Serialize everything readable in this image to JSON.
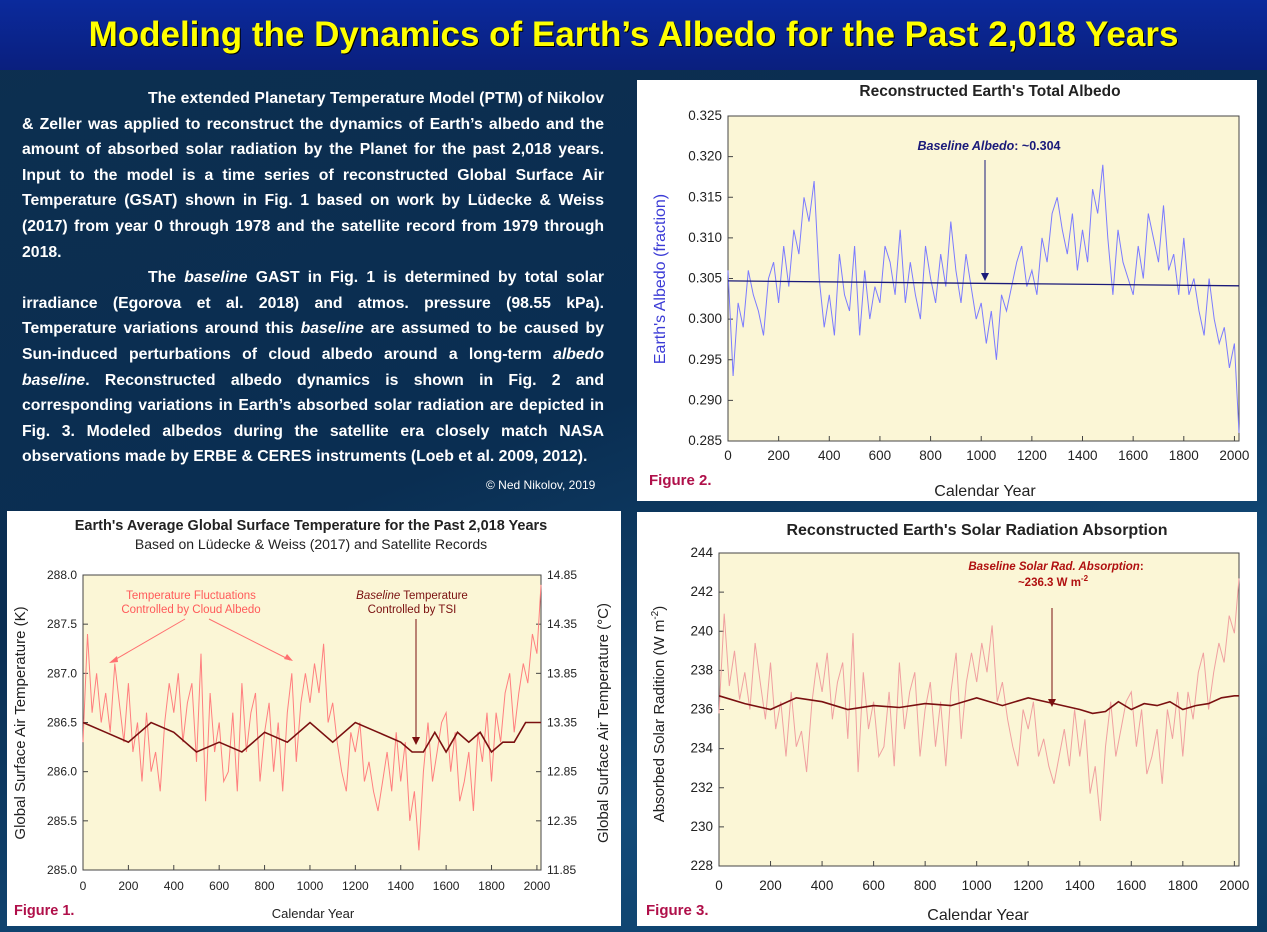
{
  "header": {
    "title": "Modeling the Dynamics of Earth’s Albedo for the Past 2,018 Years"
  },
  "intro": {
    "p1": "The extended Planetary Temperature Model (PTM) of Nikolov & Zeller was applied to reconstruct the dynamics of Earth’s albedo and the amount of absorbed solar radiation by the Planet for the past 2,018 years.  Input to the model is a time series of reconstructed Global Surface Air Temperature (GSAT) shown in Fig. 1 based on work by Lüdecke & Weiss (2017) from year 0 through 1978 and the satellite record from 1979 through 2018.",
    "p2_a": "The ",
    "p2_b": "baseline",
    "p2_c": " GAST in Fig. 1 is determined by total solar irradiance (Egorova et al. 2018) and atmos. pressure (98.55 kPa). Temperature variations around this ",
    "p2_d": "baseline",
    "p2_e": " are assumed to be caused by Sun-induced perturbations of cloud albedo around a long-term ",
    "p2_f": "albedo baseline",
    "p2_g": ". Reconstructed albedo dynamics is shown in Fig. 2 and corresponding variations in Earth’s absorbed solar radiation are depicted in Fig. 3. Modeled albedos during the satellite era closely match NASA observations made by ERBE & CERES instruments (Loeb et al. 2009, 2012).",
    "credit": "© Ned Nikolov, 2019"
  },
  "colors": {
    "title_bg": "#0a1f7e",
    "title_text": "#ffff00",
    "plot_bg": "#fbf6d6",
    "albedo_series": "#7b7bff",
    "albedo_baseline": "#1a1a7a",
    "temp_series": "#ff7f7f",
    "temp_baseline": "#7a1010",
    "absorb_series": "#f0a0a0",
    "absorb_baseline": "#7a1010",
    "figure_label": "#b0104a"
  },
  "chart_data": [
    {
      "id": "fig2",
      "type": "line",
      "title": "Reconstructed Earth's Total Albedo",
      "xlabel": "Calendar Year",
      "ylabel": "Earth's Albedo (fraction)",
      "xlim": [
        0,
        2018
      ],
      "ylim": [
        0.285,
        0.325
      ],
      "xticks": [
        0,
        200,
        400,
        600,
        800,
        1000,
        1200,
        1400,
        1600,
        1800,
        2000
      ],
      "yticks": [
        "0.285",
        "0.290",
        "0.295",
        "0.300",
        "0.305",
        "0.310",
        "0.315",
        "0.320",
        "0.325"
      ],
      "figure_label": "Figure 2.",
      "annotation_prefix": "Baseline Albedo",
      "annotation_value": ": ~0.304",
      "baseline": {
        "x": [
          0,
          2018
        ],
        "y": [
          0.3047,
          0.3041
        ]
      },
      "series": [
        {
          "name": "Reconstructed albedo",
          "x": [
            0,
            20,
            40,
            60,
            80,
            100,
            120,
            140,
            160,
            180,
            200,
            220,
            240,
            260,
            280,
            300,
            320,
            340,
            360,
            380,
            400,
            420,
            440,
            460,
            480,
            500,
            520,
            540,
            560,
            580,
            600,
            620,
            640,
            660,
            680,
            700,
            720,
            740,
            760,
            780,
            800,
            820,
            840,
            860,
            880,
            900,
            920,
            940,
            960,
            980,
            1000,
            1020,
            1040,
            1060,
            1080,
            1100,
            1120,
            1140,
            1160,
            1180,
            1200,
            1220,
            1240,
            1260,
            1280,
            1300,
            1320,
            1340,
            1360,
            1380,
            1400,
            1420,
            1440,
            1460,
            1480,
            1500,
            1520,
            1540,
            1560,
            1580,
            1600,
            1620,
            1640,
            1660,
            1680,
            1700,
            1720,
            1740,
            1760,
            1780,
            1800,
            1820,
            1840,
            1860,
            1880,
            1900,
            1920,
            1940,
            1960,
            1980,
            2000,
            2018
          ],
          "y": [
            0.306,
            0.293,
            0.302,
            0.299,
            0.306,
            0.303,
            0.301,
            0.298,
            0.305,
            0.307,
            0.302,
            0.309,
            0.304,
            0.311,
            0.308,
            0.315,
            0.312,
            0.317,
            0.305,
            0.299,
            0.303,
            0.298,
            0.308,
            0.303,
            0.301,
            0.309,
            0.298,
            0.306,
            0.3,
            0.304,
            0.302,
            0.309,
            0.307,
            0.303,
            0.311,
            0.302,
            0.307,
            0.303,
            0.3,
            0.309,
            0.305,
            0.302,
            0.308,
            0.304,
            0.312,
            0.306,
            0.302,
            0.308,
            0.304,
            0.3,
            0.302,
            0.297,
            0.301,
            0.295,
            0.303,
            0.301,
            0.304,
            0.307,
            0.309,
            0.304,
            0.306,
            0.303,
            0.31,
            0.307,
            0.313,
            0.315,
            0.311,
            0.308,
            0.313,
            0.306,
            0.311,
            0.307,
            0.316,
            0.313,
            0.319,
            0.31,
            0.303,
            0.311,
            0.307,
            0.305,
            0.303,
            0.309,
            0.305,
            0.313,
            0.31,
            0.307,
            0.314,
            0.306,
            0.308,
            0.303,
            0.31,
            0.303,
            0.305,
            0.301,
            0.298,
            0.305,
            0.3,
            0.297,
            0.299,
            0.294,
            0.297,
            0.286
          ]
        }
      ]
    },
    {
      "id": "fig1",
      "type": "line",
      "title": "Earth's Average Global Surface Temperature for the Past 2,018 Years",
      "subtitle": "Based on  Lüdecke & Weiss (2017) and Satellite Records",
      "xlabel": "Calendar Year",
      "ylabel": "Global Surface Air Temperature (K)",
      "ylabel_right": "Global Surface Air Temperature (°C)",
      "xlim": [
        0,
        2018
      ],
      "ylim": [
        285.0,
        288.0
      ],
      "ylim_right": [
        11.85,
        14.85
      ],
      "xticks": [
        0,
        200,
        400,
        600,
        800,
        1000,
        1200,
        1400,
        1600,
        1800,
        2000
      ],
      "yticks": [
        "285.0",
        "285.5",
        "286.0",
        "286.5",
        "287.0",
        "287.5",
        "288.0"
      ],
      "yticks_right": [
        "11.85",
        "12.35",
        "12.85",
        "13.35",
        "13.85",
        "14.35",
        "14.85"
      ],
      "figure_label": "Figure 1.",
      "annotation_left_1": "Temperature Fluctuations",
      "annotation_left_2": "Controlled by Cloud Albedo",
      "annotation_right_1a": "Baseline",
      "annotation_right_1b": " Temperature",
      "annotation_right_2": "Controlled by TSI",
      "series": [
        {
          "name": "Reconstructed GSAT",
          "x": [
            0,
            20,
            40,
            60,
            80,
            100,
            120,
            140,
            160,
            180,
            200,
            220,
            240,
            260,
            280,
            300,
            320,
            340,
            360,
            380,
            400,
            420,
            440,
            460,
            480,
            500,
            520,
            540,
            560,
            580,
            600,
            620,
            640,
            660,
            680,
            700,
            720,
            740,
            760,
            780,
            800,
            820,
            840,
            860,
            880,
            900,
            920,
            940,
            960,
            980,
            1000,
            1020,
            1040,
            1060,
            1080,
            1100,
            1120,
            1140,
            1160,
            1180,
            1200,
            1220,
            1240,
            1260,
            1280,
            1300,
            1320,
            1340,
            1360,
            1380,
            1400,
            1420,
            1440,
            1460,
            1480,
            1500,
            1520,
            1540,
            1560,
            1580,
            1600,
            1620,
            1640,
            1660,
            1680,
            1700,
            1720,
            1740,
            1760,
            1780,
            1800,
            1820,
            1840,
            1860,
            1880,
            1900,
            1920,
            1940,
            1960,
            1980,
            2000,
            2018
          ],
          "y": [
            286.3,
            287.4,
            286.6,
            287.0,
            286.5,
            286.8,
            286.4,
            287.1,
            286.7,
            286.3,
            286.9,
            286.2,
            286.5,
            285.9,
            286.6,
            286.0,
            286.2,
            285.8,
            286.5,
            286.9,
            286.6,
            287.0,
            286.3,
            286.7,
            286.9,
            286.1,
            287.2,
            285.7,
            286.8,
            286.2,
            286.5,
            285.9,
            286.0,
            286.6,
            285.8,
            286.9,
            286.2,
            286.6,
            286.8,
            285.9,
            286.4,
            286.7,
            286.0,
            286.5,
            285.8,
            286.6,
            287.0,
            286.1,
            286.7,
            287.0,
            286.7,
            287.1,
            286.8,
            287.3,
            286.5,
            286.7,
            286.3,
            286.0,
            285.8,
            286.4,
            286.2,
            286.5,
            285.9,
            286.1,
            285.8,
            285.6,
            285.9,
            286.2,
            285.8,
            286.4,
            285.9,
            286.3,
            285.5,
            285.8,
            285.2,
            286.0,
            286.5,
            285.9,
            286.2,
            286.5,
            286.6,
            286.0,
            286.4,
            285.7,
            285.9,
            286.2,
            285.6,
            286.4,
            286.1,
            286.6,
            285.9,
            286.6,
            286.3,
            286.8,
            287.0,
            286.4,
            286.8,
            287.1,
            286.9,
            287.4,
            287.2,
            287.9
          ]
        },
        {
          "name": "Baseline temperature",
          "x": [
            0,
            100,
            200,
            300,
            400,
            500,
            600,
            700,
            800,
            900,
            1000,
            1100,
            1200,
            1300,
            1400,
            1450,
            1500,
            1550,
            1600,
            1650,
            1700,
            1750,
            1800,
            1850,
            1900,
            1950,
            2000,
            2018
          ],
          "y": [
            286.5,
            286.4,
            286.3,
            286.5,
            286.4,
            286.2,
            286.3,
            286.2,
            286.4,
            286.3,
            286.5,
            286.3,
            286.5,
            286.4,
            286.3,
            286.2,
            286.2,
            286.4,
            286.2,
            286.4,
            286.3,
            286.4,
            286.2,
            286.3,
            286.3,
            286.5,
            286.5,
            286.5
          ]
        }
      ]
    },
    {
      "id": "fig3",
      "type": "line",
      "title": "Reconstructed Earth's Solar Radiation Absorption",
      "xlabel": "Calendar Year",
      "ylabel": "Absorbed Solar Radition (W m",
      "ylabel_sup": "-2",
      "ylabel_end": ")",
      "xlim": [
        0,
        2018
      ],
      "ylim": [
        228,
        244
      ],
      "xticks": [
        0,
        200,
        400,
        600,
        800,
        1000,
        1200,
        1400,
        1600,
        1800,
        2000
      ],
      "yticks": [
        "228",
        "230",
        "232",
        "234",
        "236",
        "238",
        "240",
        "242",
        "244"
      ],
      "figure_label": "Figure 3.",
      "annotation_1": "Baseline Solar Rad. Absorption",
      "annotation_1_end": ":",
      "annotation_2": "~236.3 W m",
      "annotation_2_sup": "-2",
      "series": [
        {
          "name": "Absorbed solar radiation",
          "x": [
            0,
            20,
            40,
            60,
            80,
            100,
            120,
            140,
            160,
            180,
            200,
            220,
            240,
            260,
            280,
            300,
            320,
            340,
            360,
            380,
            400,
            420,
            440,
            460,
            480,
            500,
            520,
            540,
            560,
            580,
            600,
            620,
            640,
            660,
            680,
            700,
            720,
            740,
            760,
            780,
            800,
            820,
            840,
            860,
            880,
            900,
            920,
            940,
            960,
            980,
            1000,
            1020,
            1040,
            1060,
            1080,
            1100,
            1120,
            1140,
            1160,
            1180,
            1200,
            1220,
            1240,
            1260,
            1280,
            1300,
            1320,
            1340,
            1360,
            1380,
            1400,
            1420,
            1440,
            1460,
            1480,
            1500,
            1520,
            1540,
            1560,
            1580,
            1600,
            1620,
            1640,
            1660,
            1680,
            1700,
            1720,
            1740,
            1760,
            1780,
            1800,
            1820,
            1840,
            1860,
            1880,
            1900,
            1920,
            1940,
            1960,
            1980,
            2000,
            2018
          ],
          "y": [
            235.8,
            240.9,
            237.2,
            239.0,
            236.5,
            237.9,
            236.0,
            239.4,
            237.4,
            235.5,
            238.4,
            235.0,
            236.4,
            233.6,
            236.9,
            234.1,
            234.9,
            232.8,
            236.3,
            238.4,
            236.9,
            238.9,
            235.5,
            237.4,
            238.4,
            234.5,
            239.9,
            232.8,
            237.9,
            235.0,
            236.4,
            233.6,
            234.1,
            236.9,
            233.1,
            238.4,
            235.0,
            236.9,
            237.9,
            233.6,
            236.0,
            237.4,
            234.1,
            236.4,
            233.1,
            236.9,
            238.9,
            234.5,
            237.4,
            238.9,
            237.4,
            239.4,
            237.9,
            240.3,
            236.4,
            237.4,
            235.5,
            234.1,
            233.1,
            236.0,
            235.0,
            236.4,
            233.6,
            234.5,
            233.1,
            232.2,
            233.6,
            235.0,
            233.1,
            236.0,
            233.6,
            235.5,
            231.7,
            233.1,
            230.3,
            234.1,
            236.4,
            233.6,
            235.0,
            236.4,
            236.9,
            234.1,
            236.0,
            232.7,
            233.6,
            235.0,
            232.2,
            236.0,
            234.5,
            236.9,
            233.6,
            236.9,
            235.5,
            237.9,
            238.9,
            236.0,
            237.9,
            239.4,
            238.4,
            240.8,
            239.9,
            242.7
          ]
        },
        {
          "name": "Baseline absorption",
          "x": [
            0,
            100,
            200,
            300,
            400,
            500,
            600,
            700,
            800,
            900,
            1000,
            1100,
            1200,
            1300,
            1400,
            1450,
            1500,
            1550,
            1600,
            1650,
            1700,
            1750,
            1800,
            1850,
            1900,
            1950,
            2000,
            2018
          ],
          "y": [
            236.7,
            236.3,
            236.0,
            236.6,
            236.4,
            236.0,
            236.2,
            236.1,
            236.3,
            236.2,
            236.6,
            236.2,
            236.6,
            236.3,
            236.0,
            235.8,
            235.9,
            236.4,
            236.0,
            236.3,
            236.2,
            236.4,
            236.0,
            236.2,
            236.3,
            236.6,
            236.7,
            236.7
          ]
        }
      ]
    }
  ]
}
